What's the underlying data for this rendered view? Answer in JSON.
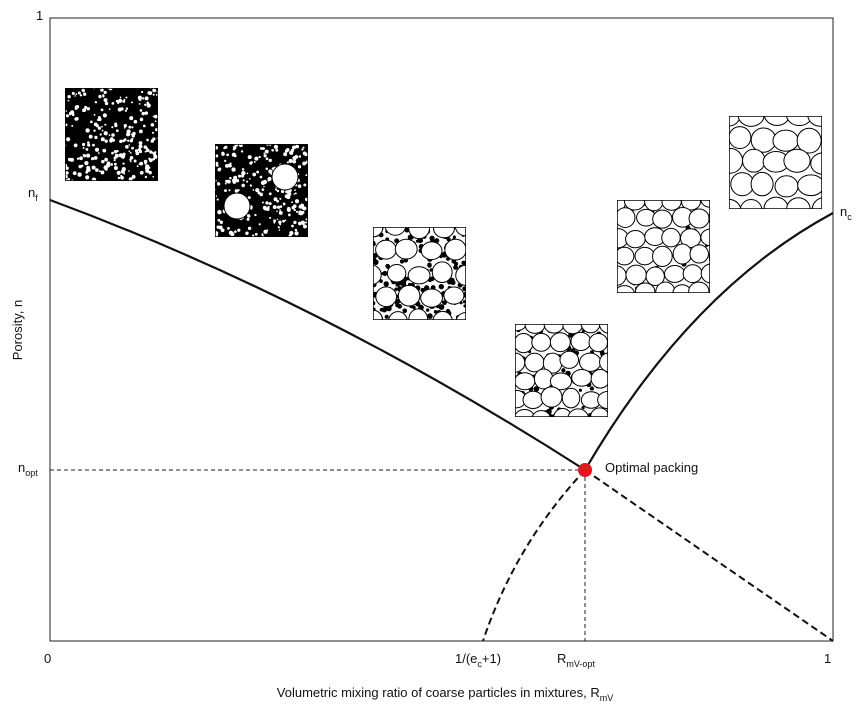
{
  "axes": {
    "y_label": "Porosity, n",
    "x_label": {
      "base": "Volumetric mixing ratio of coarse particles in mixtures, R",
      "sub": "mV"
    },
    "y_top": "1",
    "x_origin": "0",
    "x_end": "1"
  },
  "markers": {
    "n_f": {
      "base": "n",
      "sub": "f"
    },
    "n_opt": {
      "base": "n",
      "sub": "opt"
    },
    "n_c": {
      "base": "n",
      "sub": "c"
    },
    "x_threshold": {
      "pre": "1/(e",
      "sub": "c",
      "post": "+1)"
    },
    "x_opt": {
      "base": "R",
      "sub": "mV-opt"
    }
  },
  "annotation": "Optimal packing"
}
